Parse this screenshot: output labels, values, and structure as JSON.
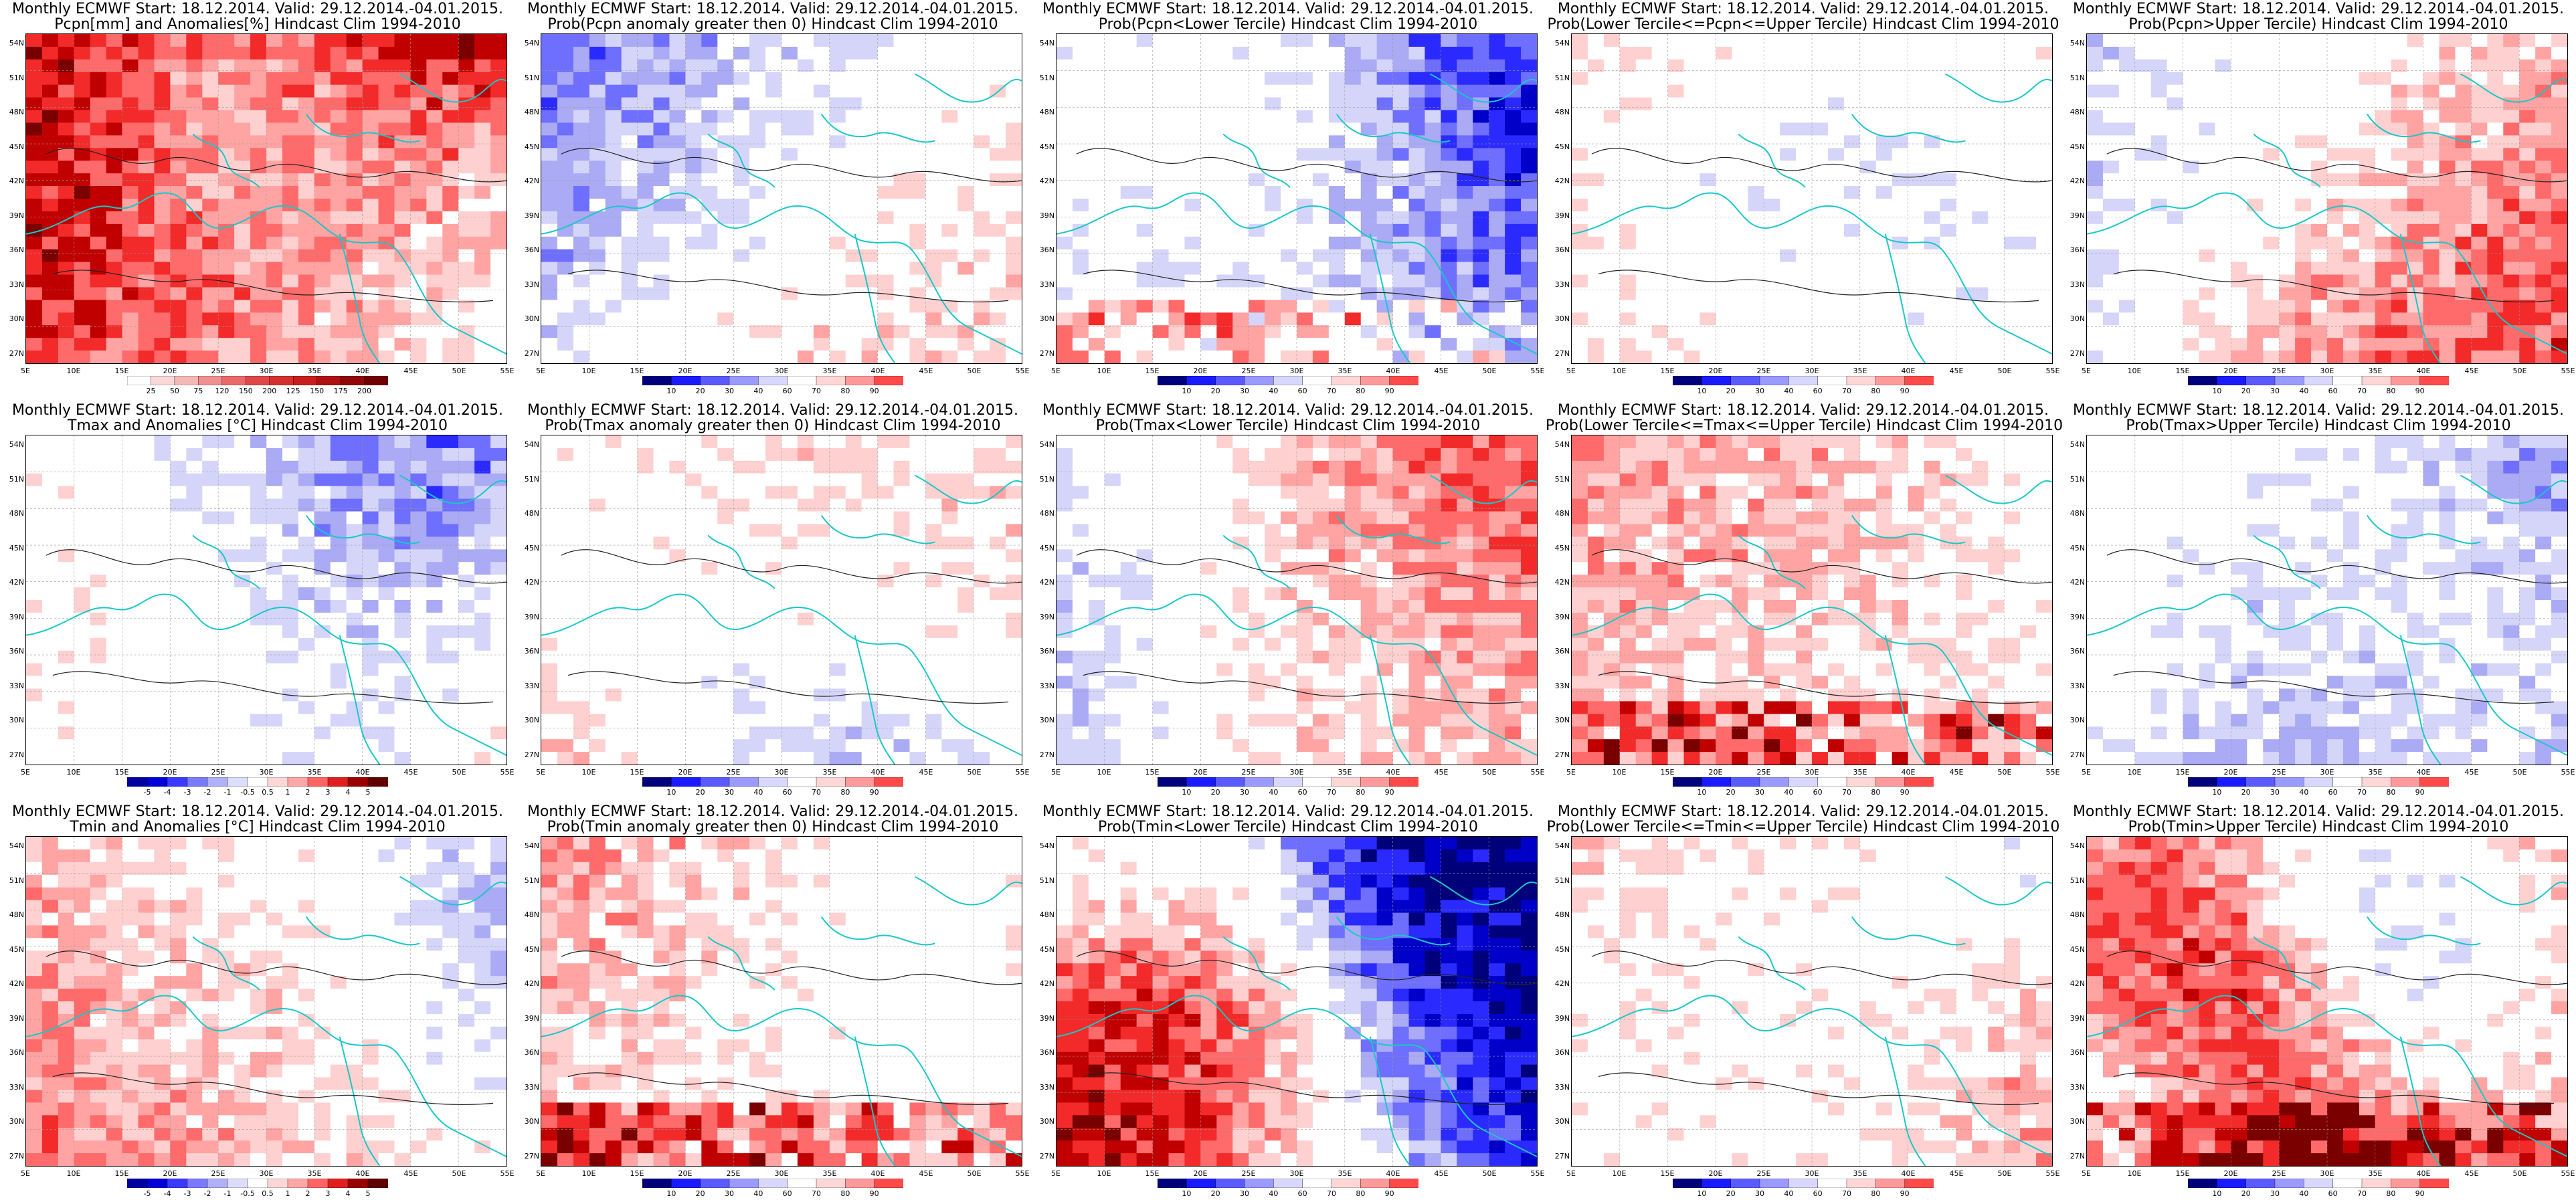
{
  "header_line": "Monthly ECMWF Start: 18.12.2014. Valid: 29.12.2014.-04.01.2015.",
  "lat_labels": [
    "54N",
    "51N",
    "48N",
    "45N",
    "42N",
    "39N",
    "36N",
    "33N",
    "30N",
    "27N"
  ],
  "lon_labels": [
    "5E",
    "10E",
    "15E",
    "20E",
    "25E",
    "30E",
    "35E",
    "40E",
    "45E",
    "50E",
    "55E"
  ],
  "panels": [
    {
      "title": "Pcpn[mm] and Anomalies[%] Hindcast Clim 1994-2010",
      "scheme": "warmwet",
      "ticks": [
        "25",
        "50",
        "75",
        "120",
        "150",
        "200",
        "125",
        "150",
        "175",
        "200"
      ],
      "seed": 1
    },
    {
      "title": "Prob(Pcpn anomaly greater then 0) Hindcast Clim 1994-2010",
      "scheme": "prob",
      "ticks": [
        "10",
        "20",
        "30",
        "40",
        "60",
        "70",
        "80",
        "90"
      ],
      "seed": 2
    },
    {
      "title": "Prob(Pcpn<Lower Tercile) Hindcast Clim 1994-2010",
      "scheme": "prob",
      "ticks": [
        "10",
        "20",
        "30",
        "40",
        "60",
        "70",
        "80",
        "90"
      ],
      "seed": 3
    },
    {
      "title": "Prob(Lower Tercile<=Pcpn<=Upper Tercile) Hindcast Clim 1994-2010",
      "scheme": "prob",
      "ticks": [
        "10",
        "20",
        "30",
        "40",
        "60",
        "70",
        "80",
        "90"
      ],
      "seed": 4
    },
    {
      "title": "Prob(Pcpn>Upper Tercile) Hindcast Clim 1994-2010",
      "scheme": "prob",
      "ticks": [
        "10",
        "20",
        "30",
        "40",
        "60",
        "70",
        "80",
        "90"
      ],
      "seed": 5
    },
    {
      "title": "Tmax and Anomalies [°C] Hindcast Clim 1994-2010",
      "scheme": "anom",
      "ticks": [
        "-5",
        "-4",
        "-3",
        "-2",
        "-1",
        "-0.5",
        "0.5",
        "1",
        "2",
        "3",
        "4",
        "5"
      ],
      "seed": 6
    },
    {
      "title": "Prob(Tmax anomaly greater then 0) Hindcast Clim 1994-2010",
      "scheme": "prob",
      "ticks": [
        "10",
        "20",
        "30",
        "40",
        "60",
        "70",
        "80",
        "90"
      ],
      "seed": 7
    },
    {
      "title": "Prob(Tmax<Lower Tercile) Hindcast Clim 1994-2010",
      "scheme": "prob",
      "ticks": [
        "10",
        "20",
        "30",
        "40",
        "60",
        "70",
        "80",
        "90"
      ],
      "seed": 8
    },
    {
      "title": "Prob(Lower Tercile<=Tmax<=Upper Tercile) Hindcast Clim 1994-2010",
      "scheme": "prob",
      "ticks": [
        "10",
        "20",
        "30",
        "40",
        "60",
        "70",
        "80",
        "90"
      ],
      "seed": 9
    },
    {
      "title": "Prob(Tmax>Upper Tercile) Hindcast Clim 1994-2010",
      "scheme": "prob",
      "ticks": [
        "10",
        "20",
        "30",
        "40",
        "60",
        "70",
        "80",
        "90"
      ],
      "seed": 10
    },
    {
      "title": "Tmin and Anomalies [°C] Hindcast Clim 1994-2010",
      "scheme": "anom",
      "ticks": [
        "-5",
        "-4",
        "-3",
        "-2",
        "-1",
        "-0.5",
        "0.5",
        "1",
        "2",
        "3",
        "4",
        "5"
      ],
      "seed": 11
    },
    {
      "title": "Prob(Tmin anomaly greater then 0) Hindcast Clim 1994-2010",
      "scheme": "prob",
      "ticks": [
        "10",
        "20",
        "30",
        "40",
        "60",
        "70",
        "80",
        "90"
      ],
      "seed": 12
    },
    {
      "title": "Prob(Tmin<Lower Tercile) Hindcast Clim 1994-2010",
      "scheme": "prob",
      "ticks": [
        "10",
        "20",
        "30",
        "40",
        "60",
        "70",
        "80",
        "90"
      ],
      "seed": 13
    },
    {
      "title": "Prob(Lower Tercile<=Tmin<=Upper Tercile) Hindcast Clim 1994-2010",
      "scheme": "prob",
      "ticks": [
        "10",
        "20",
        "30",
        "40",
        "60",
        "70",
        "80",
        "90"
      ],
      "seed": 14
    },
    {
      "title": "Prob(Tmin>Upper Tercile) Hindcast Clim 1994-2010",
      "scheme": "prob",
      "ticks": [
        "10",
        "20",
        "30",
        "40",
        "60",
        "70",
        "80",
        "90"
      ],
      "seed": 15
    }
  ]
}
